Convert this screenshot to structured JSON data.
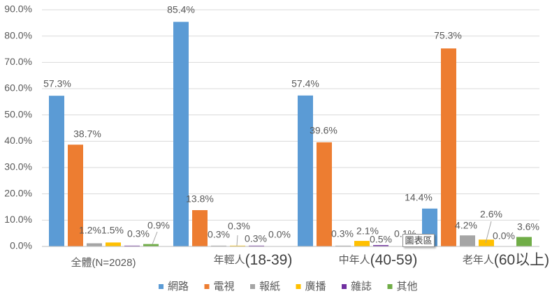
{
  "tooltip": {
    "text": "圖表區"
  },
  "chart_data": {
    "type": "bar",
    "title": "",
    "xlabel": "",
    "ylabel": "",
    "ylim": [
      0,
      90
    ],
    "y_tick_step": 10,
    "y_ticks": [
      "0.0%",
      "10.0%",
      "20.0%",
      "30.0%",
      "40.0%",
      "50.0%",
      "60.0%",
      "70.0%",
      "80.0%",
      "90.0%"
    ],
    "grid": true,
    "legend_position": "bottom",
    "categories": [
      "全體(N=2028)",
      "年輕人(18-39)",
      "中年人(40-59)",
      "老年人(60以上)"
    ],
    "series": [
      {
        "name": "網路",
        "color": "#5B9BD5",
        "values": [
          57.3,
          85.4,
          57.4,
          14.4
        ],
        "labels": [
          "57.3%",
          "85.4%",
          "57.4%",
          "14.4%"
        ]
      },
      {
        "name": "電視",
        "color": "#ED7D31",
        "values": [
          38.7,
          13.8,
          39.6,
          75.3
        ],
        "labels": [
          "38.7%",
          "13.8%",
          "39.6%",
          "75.3%"
        ]
      },
      {
        "name": "報紙",
        "color": "#A5A5A5",
        "values": [
          1.2,
          0.3,
          0.3,
          4.2
        ],
        "labels": [
          "1.2%",
          "0.3%",
          "0.3%",
          "4.2%"
        ]
      },
      {
        "name": "廣播",
        "color": "#FFC000",
        "values": [
          1.5,
          0.3,
          2.1,
          2.6
        ],
        "labels": [
          "1.5%",
          "0.3%",
          "2.1%",
          "2.6%"
        ]
      },
      {
        "name": "雜誌",
        "color": "#7030A0",
        "values": [
          0.3,
          0.3,
          0.5,
          0.0
        ],
        "labels": [
          "0.3%",
          "0.3%",
          "0.5%",
          "0.0%"
        ]
      },
      {
        "name": "其他",
        "color": "#70AD47",
        "values": [
          0.9,
          0.0,
          0.1,
          3.6
        ],
        "labels": [
          "0.9%",
          "0.0%",
          "0.1%",
          "3.6%"
        ]
      }
    ]
  }
}
